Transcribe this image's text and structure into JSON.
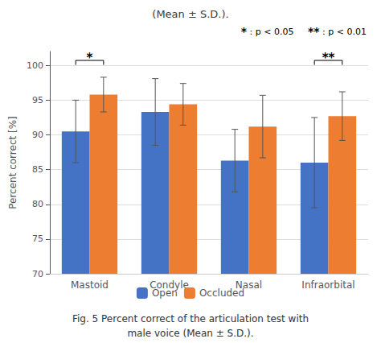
{
  "chart_data": {
    "type": "bar",
    "title": "(Mean ± S.D.).",
    "categories": [
      "Mastoid",
      "Condyle",
      "Nasal",
      "Infraorbital"
    ],
    "series": [
      {
        "name": "Open",
        "color": "#4472C4",
        "values": [
          90.5,
          93.3,
          86.3,
          86.0
        ],
        "errors": [
          4.5,
          4.8,
          4.5,
          6.5
        ]
      },
      {
        "name": "Occluded",
        "color": "#ED7D31",
        "values": [
          95.8,
          94.4,
          91.2,
          92.7
        ],
        "errors": [
          2.5,
          3.0,
          4.5,
          3.5
        ]
      }
    ],
    "ylabel": "Percent correct [%]",
    "ylim": [
      70,
      102
    ],
    "yticks": [
      70,
      75,
      80,
      85,
      90,
      95,
      100
    ],
    "grid": true,
    "legend": "bottom",
    "significance": [
      {
        "category": "Mastoid",
        "label": "*"
      },
      {
        "category": "Infraorbital",
        "label": "**"
      }
    ],
    "annotations": [
      {
        "symbol": "*",
        "text": ": p < 0.05"
      },
      {
        "symbol": "**",
        "text": ": p < 0.01"
      }
    ],
    "caption": [
      "Fig. 5 Percent correct of the articulation test with",
      "male voice (Mean ± S.D.)."
    ]
  }
}
